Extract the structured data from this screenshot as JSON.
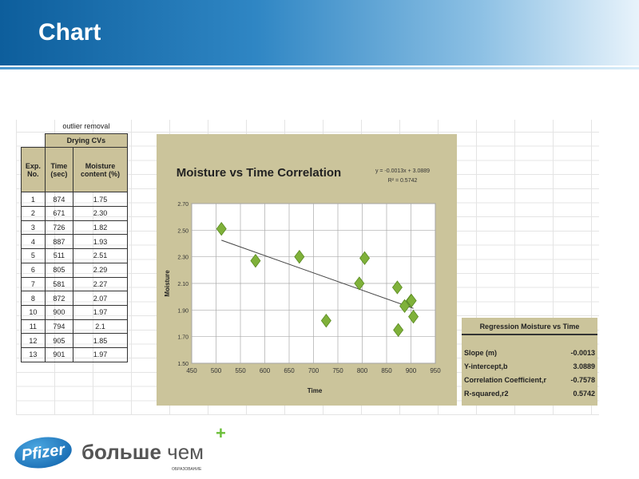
{
  "header": {
    "title": "Chart"
  },
  "table": {
    "caption": "outlier removal",
    "group_header": "Drying CVs",
    "columns": [
      "Exp. No.",
      "Time (sec)",
      "Moisture content (%)"
    ],
    "rows": [
      [
        "1",
        "874",
        "1.75"
      ],
      [
        "2",
        "671",
        "2.30"
      ],
      [
        "3",
        "726",
        "1.82"
      ],
      [
        "4",
        "887",
        "1.93"
      ],
      [
        "5",
        "511",
        "2.51"
      ],
      [
        "6",
        "805",
        "2.29"
      ],
      [
        "7",
        "581",
        "2.27"
      ],
      [
        "8",
        "872",
        "2.07"
      ],
      [
        "10",
        "900",
        "1.97"
      ],
      [
        "11",
        "794",
        "2.1"
      ],
      [
        "12",
        "905",
        "1.85"
      ],
      [
        "13",
        "901",
        "1.97"
      ]
    ]
  },
  "chart_data": {
    "type": "scatter",
    "title": "Moisture vs Time Correlation",
    "xlabel": "Time",
    "ylabel": "Moisture",
    "xlim": [
      450,
      950
    ],
    "ylim": [
      1.5,
      2.7
    ],
    "xticks": [
      "450",
      "500",
      "550",
      "600",
      "650",
      "700",
      "750",
      "800",
      "850",
      "900",
      "950"
    ],
    "yticks": [
      "1.50",
      "1.70",
      "1.90",
      "2.10",
      "2.30",
      "2.50",
      "2.70"
    ],
    "grid": true,
    "points": [
      [
        874,
        1.75
      ],
      [
        671,
        2.3
      ],
      [
        726,
        1.82
      ],
      [
        887,
        1.93
      ],
      [
        511,
        2.51
      ],
      [
        805,
        2.29
      ],
      [
        581,
        2.27
      ],
      [
        872,
        2.07
      ],
      [
        900,
        1.97
      ],
      [
        794,
        2.1
      ],
      [
        905,
        1.85
      ],
      [
        901,
        1.97
      ]
    ],
    "trendline": {
      "slope": -0.0013,
      "intercept": 3.0889,
      "x_range": [
        511,
        905
      ],
      "equation": "y = -0.0013x + 3.0889",
      "r2_label": "R² = 0.5742"
    },
    "marker_color": "#7fb13a"
  },
  "regression": {
    "title": "Regression Moisture vs Time",
    "rows": [
      {
        "label": "Slope (m)",
        "value": "-0.0013"
      },
      {
        "label": "Y-intercept,b",
        "value": "3.0889"
      },
      {
        "label": "Correlation Coefficient,r",
        "value": "-0.7578"
      },
      {
        "label": "R-squared,r2",
        "value": "0.5742"
      }
    ]
  },
  "footer": {
    "brand": "Pfizer",
    "slogan_bold": "больше",
    "slogan": "чем",
    "slogan_sub": "ОБРАЗОВАНИЕ"
  }
}
